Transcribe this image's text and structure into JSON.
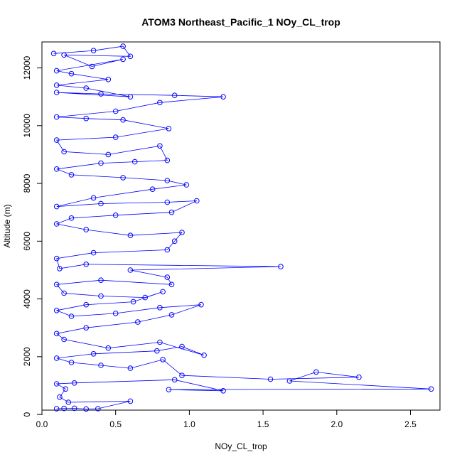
{
  "chart_data": {
    "type": "scatter",
    "title": "ATOM3 Northeast_Pacific_1 NOy_CL_trop",
    "xlabel": "NOy_CL_trop",
    "ylabel": "Altitude (m)",
    "xlim": [
      0,
      2.7
    ],
    "ylim": [
      150,
      12900
    ],
    "x_ticks": [
      0.0,
      0.5,
      1.0,
      1.5,
      2.0,
      2.5
    ],
    "x_tick_labels": [
      "0.0",
      "0.5",
      "1.0",
      "1.5",
      "2.0",
      "2.5"
    ],
    "y_ticks": [
      0,
      2000,
      4000,
      6000,
      8000,
      10000,
      12000
    ],
    "y_tick_labels": [
      "0",
      "2000",
      "4000",
      "6000",
      "8000",
      "10000",
      "12000"
    ],
    "grid": false,
    "marker": "open-circle",
    "connected": true,
    "series_color": "#0000ff",
    "series": [
      {
        "points": [
          [
            0.1,
            200
          ],
          [
            0.15,
            210
          ],
          [
            0.22,
            215
          ],
          [
            0.3,
            190
          ],
          [
            0.38,
            200
          ],
          [
            0.6,
            460
          ],
          [
            0.18,
            420
          ],
          [
            0.12,
            600
          ],
          [
            0.16,
            880
          ],
          [
            0.1,
            1060
          ],
          [
            0.22,
            1090
          ],
          [
            0.9,
            1200
          ],
          [
            1.23,
            820
          ],
          [
            0.86,
            860
          ],
          [
            2.64,
            880
          ],
          [
            1.68,
            1160
          ],
          [
            1.86,
            1470
          ],
          [
            2.15,
            1290
          ],
          [
            1.55,
            1220
          ],
          [
            0.95,
            1350
          ],
          [
            0.82,
            1900
          ],
          [
            0.6,
            1600
          ],
          [
            0.4,
            1700
          ],
          [
            0.2,
            1800
          ],
          [
            0.1,
            1950
          ],
          [
            0.35,
            2100
          ],
          [
            0.78,
            2200
          ],
          [
            0.95,
            2350
          ],
          [
            1.1,
            2050
          ],
          [
            0.8,
            2500
          ],
          [
            0.45,
            2300
          ],
          [
            0.15,
            2600
          ],
          [
            0.1,
            2800
          ],
          [
            0.3,
            3000
          ],
          [
            0.65,
            3200
          ],
          [
            0.88,
            3450
          ],
          [
            1.08,
            3800
          ],
          [
            0.8,
            3700
          ],
          [
            0.5,
            3500
          ],
          [
            0.2,
            3400
          ],
          [
            0.1,
            3600
          ],
          [
            0.3,
            3800
          ],
          [
            0.62,
            3900
          ],
          [
            0.82,
            4250
          ],
          [
            0.7,
            4050
          ],
          [
            0.4,
            4100
          ],
          [
            0.15,
            4200
          ],
          [
            0.1,
            4500
          ],
          [
            0.4,
            4650
          ],
          [
            0.88,
            4500
          ],
          [
            0.85,
            4750
          ],
          [
            0.6,
            5000
          ],
          [
            1.62,
            5120
          ],
          [
            0.3,
            5200
          ],
          [
            0.12,
            5050
          ],
          [
            0.1,
            5400
          ],
          [
            0.35,
            5600
          ],
          [
            0.85,
            5700
          ],
          [
            0.9,
            6000
          ],
          [
            0.95,
            6300
          ],
          [
            0.6,
            6200
          ],
          [
            0.3,
            6400
          ],
          [
            0.1,
            6600
          ],
          [
            0.2,
            6800
          ],
          [
            0.5,
            6900
          ],
          [
            0.88,
            7000
          ],
          [
            1.05,
            7400
          ],
          [
            0.85,
            7350
          ],
          [
            0.4,
            7300
          ],
          [
            0.1,
            7200
          ],
          [
            0.35,
            7500
          ],
          [
            0.75,
            7800
          ],
          [
            0.98,
            7950
          ],
          [
            0.85,
            8100
          ],
          [
            0.55,
            8200
          ],
          [
            0.2,
            8300
          ],
          [
            0.1,
            8500
          ],
          [
            0.4,
            8700
          ],
          [
            0.63,
            8750
          ],
          [
            0.85,
            8800
          ],
          [
            0.8,
            9300
          ],
          [
            0.45,
            9000
          ],
          [
            0.15,
            9100
          ],
          [
            0.1,
            9500
          ],
          [
            0.5,
            9600
          ],
          [
            0.86,
            9900
          ],
          [
            0.55,
            10200
          ],
          [
            0.3,
            10250
          ],
          [
            0.1,
            10300
          ],
          [
            0.5,
            10500
          ],
          [
            0.8,
            10800
          ],
          [
            1.23,
            11000
          ],
          [
            0.9,
            11050
          ],
          [
            0.4,
            11100
          ],
          [
            0.1,
            11150
          ],
          [
            0.6,
            11000
          ],
          [
            0.3,
            11300
          ],
          [
            0.1,
            11400
          ],
          [
            0.45,
            11600
          ],
          [
            0.2,
            11800
          ],
          [
            0.1,
            11900
          ],
          [
            0.55,
            12300
          ],
          [
            0.34,
            12050
          ],
          [
            0.15,
            12450
          ],
          [
            0.6,
            12400
          ],
          [
            0.55,
            12750
          ],
          [
            0.35,
            12600
          ],
          [
            0.08,
            12500
          ]
        ]
      }
    ]
  }
}
